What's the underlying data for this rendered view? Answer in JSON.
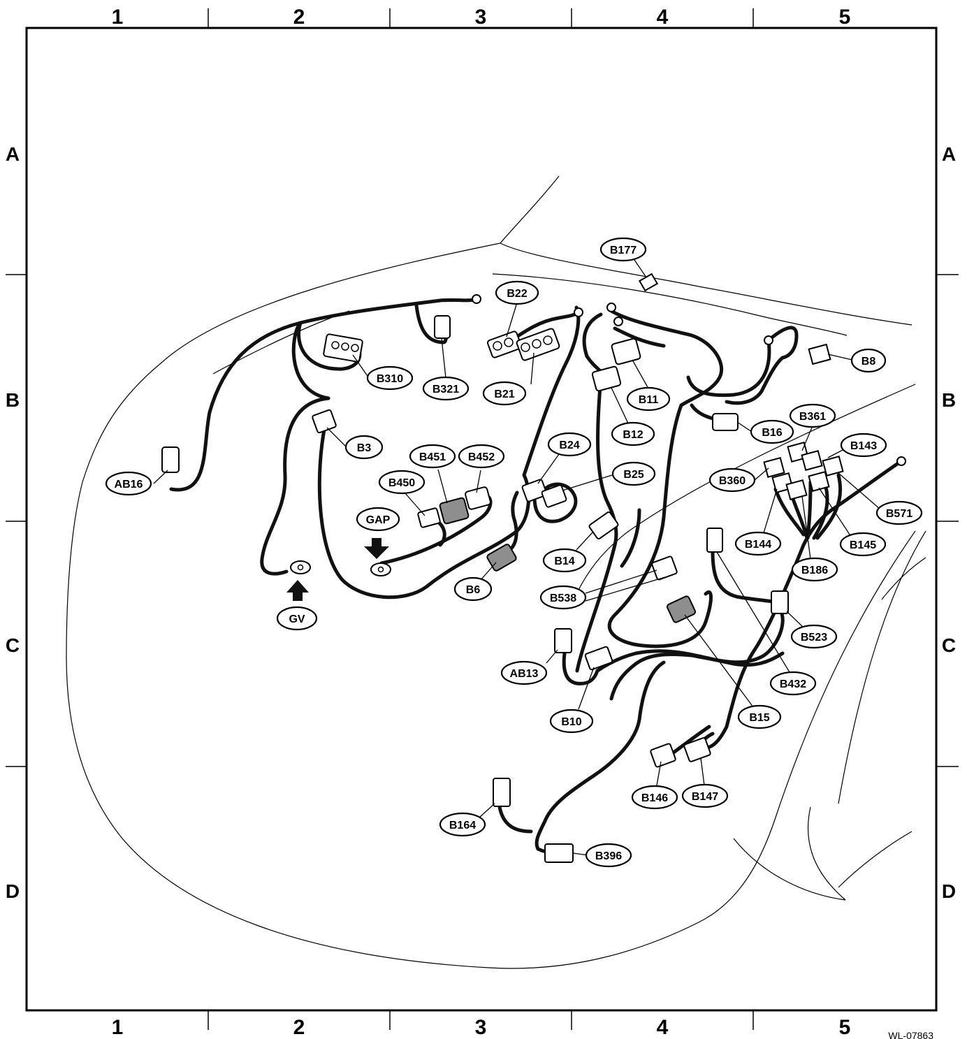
{
  "diagram": {
    "columns": [
      "1",
      "2",
      "3",
      "4",
      "5"
    ],
    "rows": [
      "A",
      "B",
      "C",
      "D"
    ],
    "drawing_code": "WL-07863",
    "connectors": [
      "B177",
      "B22",
      "B21",
      "B8",
      "B310",
      "B321",
      "B11",
      "B12",
      "B16",
      "AB16",
      "B3",
      "B361",
      "B143",
      "B451",
      "B452",
      "B24",
      "B25",
      "B360",
      "B450",
      "GAP",
      "B571",
      "B144",
      "B145",
      "B14",
      "B186",
      "GV",
      "B6",
      "B538",
      "B523",
      "AB13",
      "C_B432",
      "B10",
      "B15",
      "B146",
      "B147",
      "B164",
      "B396"
    ],
    "labels": {
      "B177": "B177",
      "B22": "B22",
      "B21": "B21",
      "B8": "B8",
      "B310": "B310",
      "B321": "B321",
      "B11": "B11",
      "B12": "B12",
      "B16": "B16",
      "AB16": "AB16",
      "B3": "B3",
      "B361": "B361",
      "B143": "B143",
      "B451": "B451",
      "B452": "B452",
      "B24": "B24",
      "B25": "B25",
      "B360": "B360",
      "B450": "B450",
      "GAP": "GAP",
      "B571": "B571",
      "B144": "B144",
      "B145": "B145",
      "B14": "B14",
      "B186": "B186",
      "GV": "GV",
      "B6": "B6",
      "B538": "B538",
      "B523": "B523",
      "AB13": "AB13",
      "B432": "B432",
      "B10": "B10",
      "B15": "B15",
      "B146": "B146",
      "B147": "B147",
      "B164": "B164",
      "B396": "B396"
    }
  }
}
